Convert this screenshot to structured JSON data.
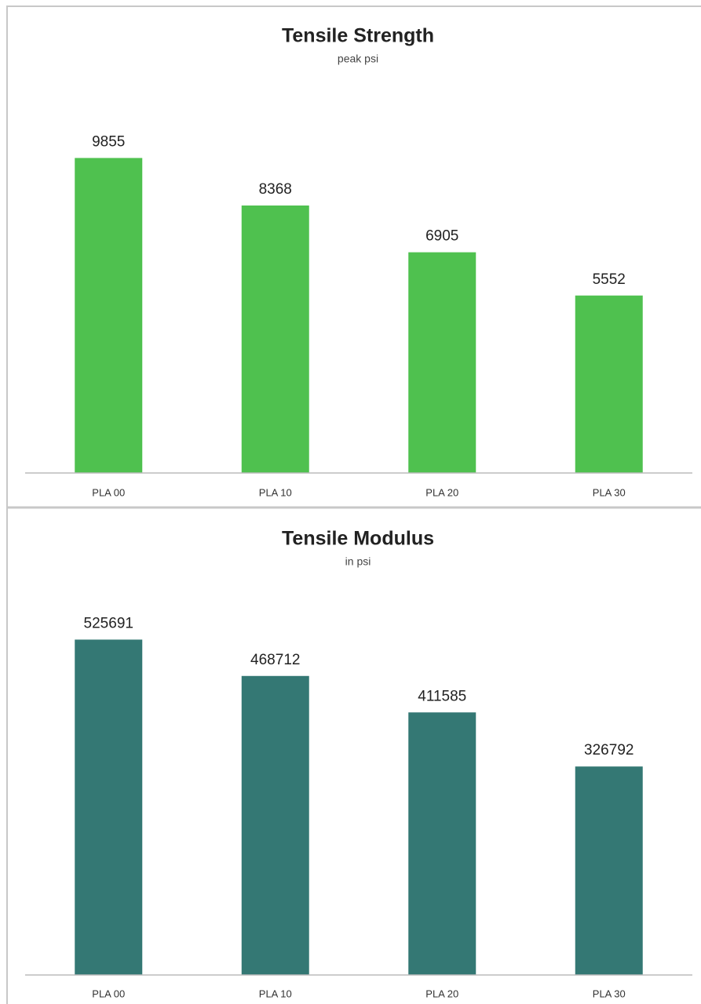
{
  "chart_data": [
    {
      "type": "bar",
      "title": "Tensile Strength",
      "subtitle": "peak psi",
      "categories": [
        "PLA 00",
        "PLA 10",
        "PLA 20",
        "PLA 30"
      ],
      "values": [
        9855,
        8368,
        6905,
        5552
      ],
      "color": "#4fc14f",
      "ylim": [
        0,
        12000
      ]
    },
    {
      "type": "bar",
      "title": "Tensile Modulus",
      "subtitle": "in psi",
      "categories": [
        "PLA 00",
        "PLA 10",
        "PLA 20",
        "PLA 30"
      ],
      "values": [
        525691,
        468712,
        411585,
        326792
      ],
      "color": "#347874",
      "ylim": [
        0,
        600000
      ]
    }
  ]
}
